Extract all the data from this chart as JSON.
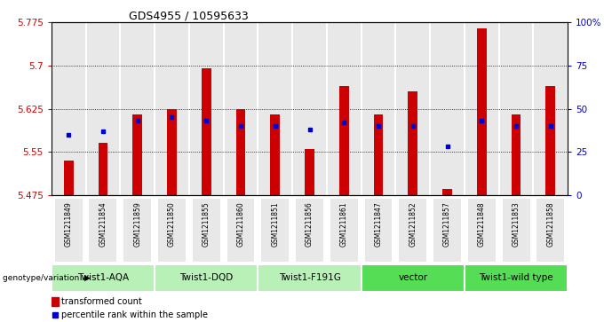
{
  "title": "GDS4955 / 10595633",
  "samples": [
    "GSM1211849",
    "GSM1211854",
    "GSM1211859",
    "GSM1211850",
    "GSM1211855",
    "GSM1211860",
    "GSM1211851",
    "GSM1211856",
    "GSM1211861",
    "GSM1211847",
    "GSM1211852",
    "GSM1211857",
    "GSM1211848",
    "GSM1211853",
    "GSM1211858"
  ],
  "transformed_counts": [
    5.535,
    5.565,
    5.615,
    5.625,
    5.695,
    5.625,
    5.615,
    5.555,
    5.665,
    5.615,
    5.655,
    5.485,
    5.765,
    5.615,
    5.665
  ],
  "percentile_ranks": [
    35,
    37,
    43,
    45,
    43,
    40,
    40,
    38,
    42,
    40,
    40,
    28,
    43,
    40,
    40
  ],
  "group_defs": [
    {
      "label": "Twist1-AQA",
      "start": 0,
      "end": 3,
      "color": "#b8f0b8"
    },
    {
      "label": "Twist1-DQD",
      "start": 3,
      "end": 6,
      "color": "#b8f0b8"
    },
    {
      "label": "Twist1-F191G",
      "start": 6,
      "end": 9,
      "color": "#b8f0b8"
    },
    {
      "label": "vector",
      "start": 9,
      "end": 12,
      "color": "#55dd55"
    },
    {
      "label": "Twist1-wild type",
      "start": 12,
      "end": 15,
      "color": "#55dd55"
    }
  ],
  "ymin": 5.475,
  "ymax": 5.775,
  "yticks": [
    5.475,
    5.55,
    5.625,
    5.7,
    5.775
  ],
  "ytick_labels": [
    "5.475",
    "5.55",
    "5.625",
    "5.7",
    "5.775"
  ],
  "right_yticks": [
    0,
    25,
    50,
    75,
    100
  ],
  "right_yticklabels": [
    "0",
    "25",
    "50",
    "75",
    "100%"
  ],
  "bar_color": "#cc0000",
  "dot_color": "#0000cc",
  "bar_bottom": 5.475,
  "bg_color": "#e8e8e8",
  "grid_color": "#000000",
  "label_color_red": "#cc0000",
  "label_color_blue": "#0000cc",
  "white": "#ffffff",
  "title_fontsize": 9,
  "tick_fontsize": 7.5,
  "legend_fontsize": 7,
  "group_fontsize": 7.5,
  "sample_fontsize": 5.5
}
